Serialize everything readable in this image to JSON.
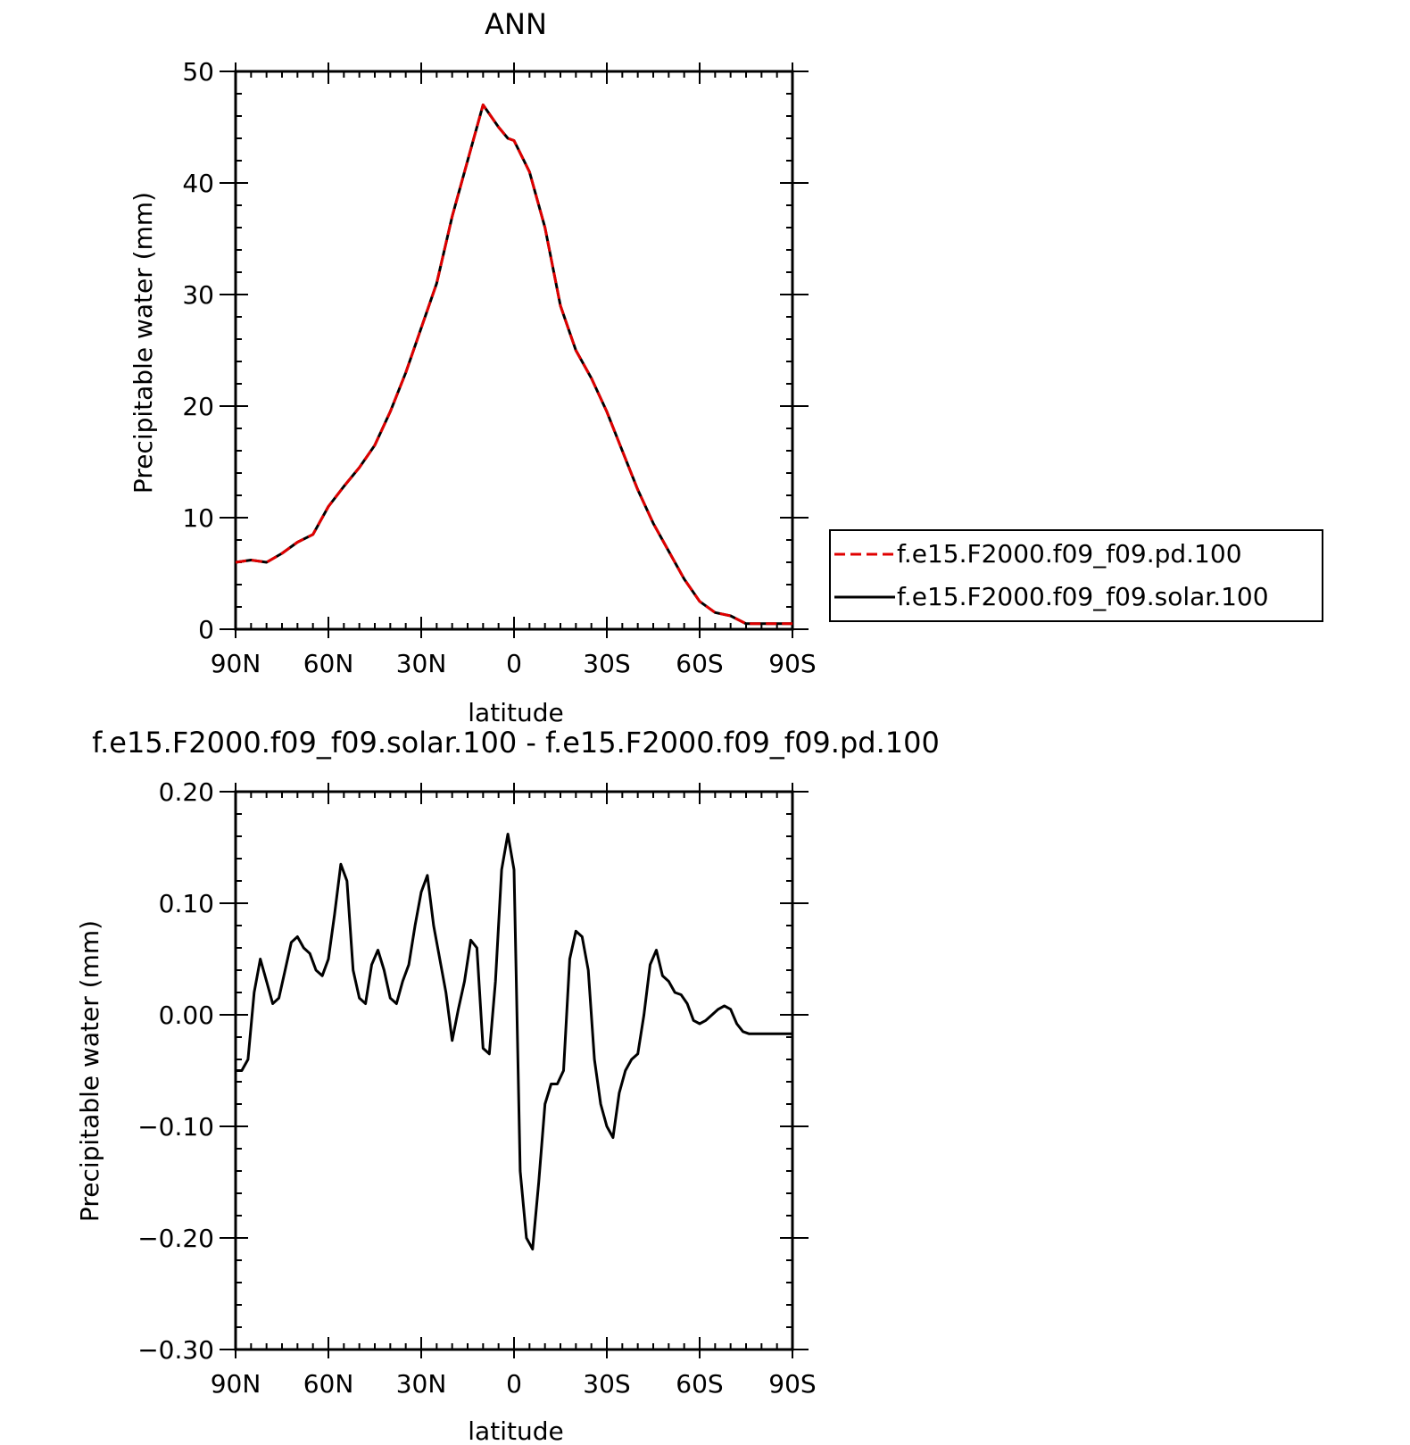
{
  "chart_data": [
    {
      "type": "line",
      "title": "ANN",
      "xlabel": "latitude",
      "ylabel": "Precipitable water (mm)",
      "xlim": [
        90,
        -90
      ],
      "ylim": [
        0,
        50
      ],
      "x_ticks": [
        90,
        60,
        30,
        0,
        -30,
        -60,
        -90
      ],
      "x_tick_labels": [
        "90N",
        "60N",
        "30N",
        "0",
        "30S",
        "60S",
        "90S"
      ],
      "y_ticks": [
        0,
        10,
        20,
        30,
        40,
        50
      ],
      "y_tick_labels": [
        "0",
        "10",
        "20",
        "30",
        "40",
        "50"
      ],
      "legend": {
        "placement": "right",
        "entries": [
          "f.e15.F2000.f09_f09.pd.100",
          "f.e15.F2000.f09_f09.solar.100"
        ]
      },
      "series": [
        {
          "name": "f.e15.F2000.f09_f09.pd.100",
          "color": "#e00000",
          "dash": "dashed",
          "x": [
            90,
            85,
            80,
            75,
            70,
            65,
            60,
            55,
            50,
            45,
            40,
            35,
            30,
            25,
            20,
            15,
            10,
            5,
            2,
            0,
            -5,
            -10,
            -15,
            -20,
            -25,
            -30,
            -35,
            -40,
            -45,
            -50,
            -55,
            -60,
            -65,
            -70,
            -75,
            -80,
            -85,
            -90
          ],
          "values": [
            6.0,
            6.2,
            6.0,
            6.8,
            7.8,
            8.5,
            11.0,
            12.8,
            14.5,
            16.5,
            19.5,
            23.0,
            27.0,
            31.0,
            37.0,
            42.0,
            47.0,
            45.0,
            44.0,
            43.8,
            41.0,
            36.0,
            29.0,
            25.0,
            22.5,
            19.5,
            16.0,
            12.5,
            9.5,
            7.0,
            4.5,
            2.5,
            1.5,
            1.2,
            0.5,
            0.5,
            0.5,
            0.5
          ]
        },
        {
          "name": "f.e15.F2000.f09_f09.solar.100",
          "color": "#000000",
          "dash": "solid",
          "x": [
            90,
            85,
            80,
            75,
            70,
            65,
            60,
            55,
            50,
            45,
            40,
            35,
            30,
            25,
            20,
            15,
            10,
            5,
            2,
            0,
            -5,
            -10,
            -15,
            -20,
            -25,
            -30,
            -35,
            -40,
            -45,
            -50,
            -55,
            -60,
            -65,
            -70,
            -75,
            -80,
            -85,
            -90
          ],
          "values": [
            6.0,
            6.2,
            6.0,
            6.8,
            7.8,
            8.5,
            11.0,
            12.8,
            14.5,
            16.5,
            19.5,
            23.0,
            27.0,
            31.0,
            37.0,
            42.0,
            47.0,
            45.0,
            44.0,
            43.8,
            41.0,
            36.0,
            29.0,
            25.0,
            22.5,
            19.5,
            16.0,
            12.5,
            9.5,
            7.0,
            4.5,
            2.5,
            1.5,
            1.2,
            0.5,
            0.5,
            0.5,
            0.5
          ]
        }
      ]
    },
    {
      "type": "line",
      "title": "f.e15.F2000.f09_f09.solar.100 - f.e15.F2000.f09_f09.pd.100",
      "xlabel": "latitude",
      "ylabel": "Precipitable water (mm)",
      "xlim": [
        90,
        -90
      ],
      "ylim": [
        -0.3,
        0.2
      ],
      "x_ticks": [
        90,
        60,
        30,
        0,
        -30,
        -60,
        -90
      ],
      "x_tick_labels": [
        "90N",
        "60N",
        "30N",
        "0",
        "30S",
        "60S",
        "90S"
      ],
      "y_ticks": [
        0.2,
        0.1,
        0.0,
        -0.1,
        -0.2,
        -0.3
      ],
      "y_tick_labels": [
        "0.20",
        "0.10",
        "0.00",
        "−0.10",
        "−0.20",
        "−0.30"
      ],
      "series": [
        {
          "color": "#000000",
          "dash": "solid",
          "x": [
            90,
            88,
            86,
            84,
            82,
            80,
            78,
            76,
            74,
            72,
            70,
            68,
            66,
            64,
            62,
            60,
            58,
            56,
            54,
            52,
            50,
            48,
            46,
            44,
            42,
            40,
            38,
            36,
            34,
            32,
            30,
            28,
            26,
            24,
            22,
            20,
            18,
            16,
            14,
            12,
            10,
            8,
            6,
            4,
            2,
            0,
            -2,
            -4,
            -6,
            -8,
            -10,
            -12,
            -14,
            -16,
            -18,
            -20,
            -22,
            -24,
            -26,
            -28,
            -30,
            -32,
            -34,
            -36,
            -38,
            -40,
            -42,
            -44,
            -46,
            -48,
            -50,
            -52,
            -54,
            -56,
            -58,
            -60,
            -62,
            -64,
            -66,
            -68,
            -70,
            -72,
            -74,
            -76,
            -78,
            -80,
            -82,
            -84,
            -86,
            -88,
            -90
          ],
          "values": [
            -0.05,
            -0.05,
            -0.04,
            0.02,
            0.05,
            0.03,
            0.01,
            0.015,
            0.04,
            0.065,
            0.07,
            0.06,
            0.055,
            0.04,
            0.035,
            0.05,
            0.09,
            0.135,
            0.12,
            0.04,
            0.015,
            0.01,
            0.045,
            0.058,
            0.04,
            0.015,
            0.01,
            0.03,
            0.045,
            0.08,
            0.11,
            0.125,
            0.08,
            0.05,
            0.02,
            -0.023,
            0.005,
            0.03,
            0.067,
            0.06,
            -0.03,
            -0.035,
            0.03,
            0.13,
            0.162,
            0.13,
            -0.14,
            -0.2,
            -0.21,
            -0.15,
            -0.08,
            -0.062,
            -0.062,
            -0.05,
            0.05,
            0.075,
            0.07,
            0.04,
            -0.04,
            -0.08,
            -0.1,
            -0.11,
            -0.07,
            -0.05,
            -0.04,
            -0.035,
            0.0,
            0.045,
            0.058,
            0.035,
            0.03,
            0.02,
            0.018,
            0.01,
            -0.005,
            -0.008,
            -0.005,
            0.0,
            0.005,
            0.008,
            0.005,
            -0.008,
            -0.015,
            -0.017,
            -0.017,
            -0.017,
            -0.017,
            -0.017,
            -0.017,
            -0.017,
            -0.017
          ]
        }
      ]
    }
  ]
}
